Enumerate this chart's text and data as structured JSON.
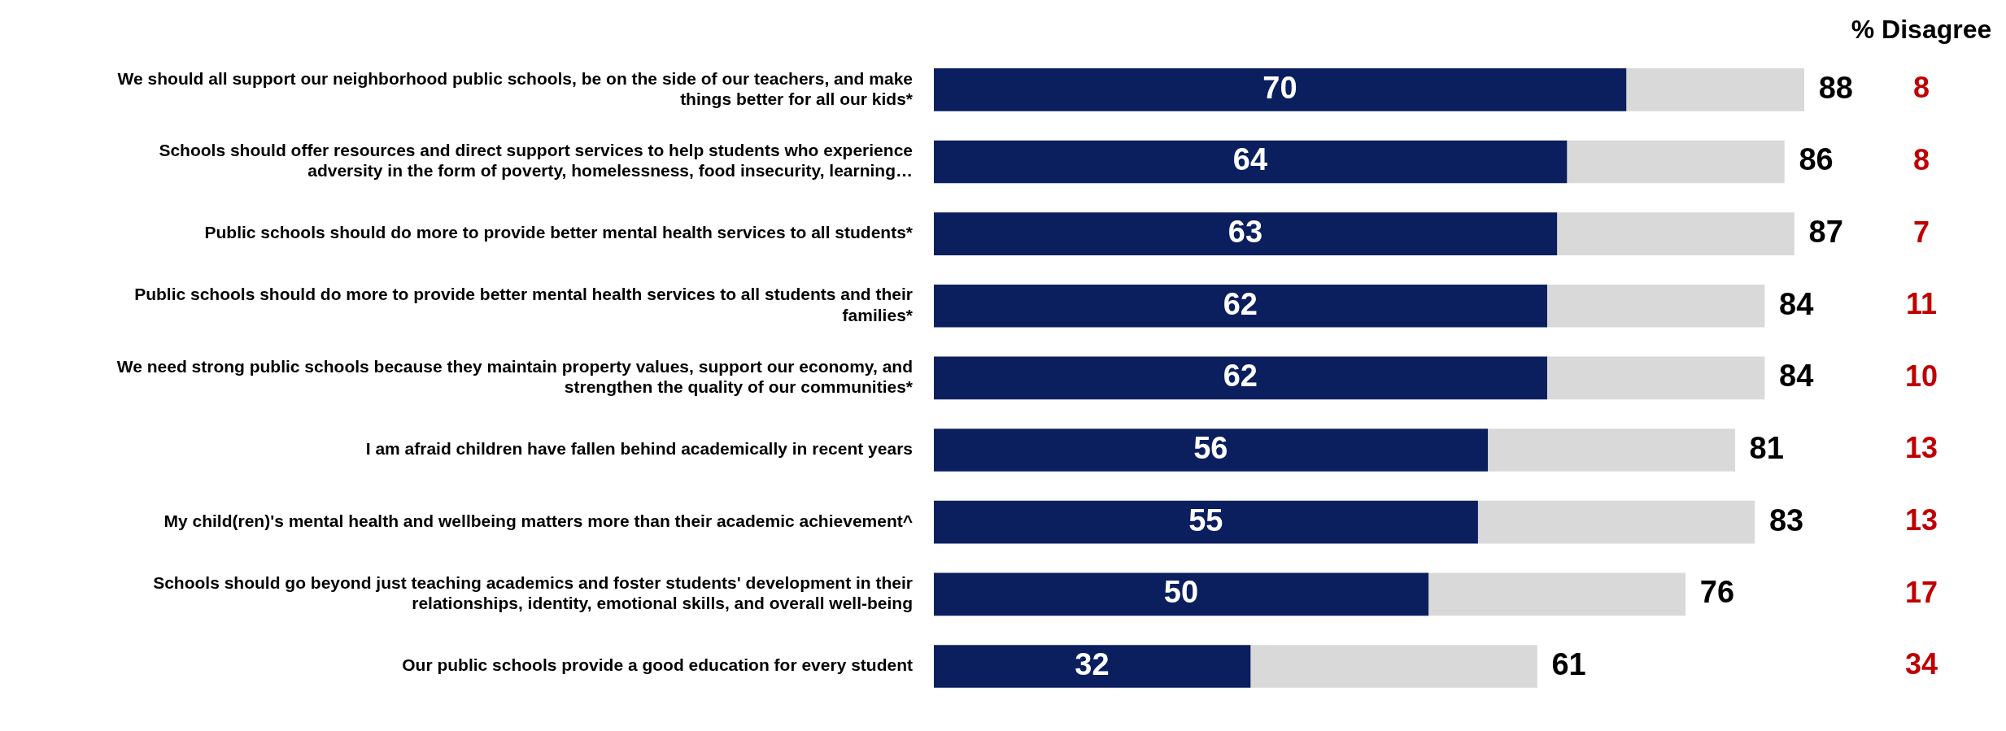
{
  "chart_data": {
    "type": "bar",
    "orientation": "horizontal",
    "stacked": true,
    "categories": [
      "We should all support our neighborhood public schools, be on the side of our teachers, and make things better for all our kids*",
      "Schools should offer resources and direct support services to help students who experience adversity in the form of poverty, homelessness, food insecurity, learning…",
      "Public schools should do more to provide better mental health services to all students*",
      "Public schools should do more to provide better mental health services to all students and their families*",
      "We need strong public schools because they maintain property values, support our economy, and strengthen the quality of our communities*",
      "I am afraid children have fallen behind academically in recent years",
      "My child(ren)'s mental health and wellbeing matters more than their academic achievement^",
      "Schools should go beyond just teaching academics and foster students' development in their relationships, identity, emotional skills, and overall well-being",
      "Our public schools provide a good education for every student"
    ],
    "series": [
      {
        "color": "#0b1f5f",
        "values": [
          70,
          64,
          63,
          62,
          62,
          56,
          55,
          50,
          32
        ],
        "value_labels": [
          "70",
          "64",
          "63",
          "62",
          "62",
          "56",
          "55",
          "50",
          "32"
        ]
      },
      {
        "color": "#d9d9d9",
        "values": [
          18,
          22,
          24,
          22,
          22,
          25,
          28,
          26,
          29
        ]
      }
    ],
    "totals": [
      "88",
      "86",
      "87",
      "84",
      "84",
      "81",
      "83",
      "76",
      "61"
    ],
    "annotations": [
      "% Disagree",
      "8",
      "8",
      "7",
      "11",
      "10",
      "13",
      "13",
      "17",
      "34"
    ],
    "tick_labels": "y",
    "legend": false
  }
}
